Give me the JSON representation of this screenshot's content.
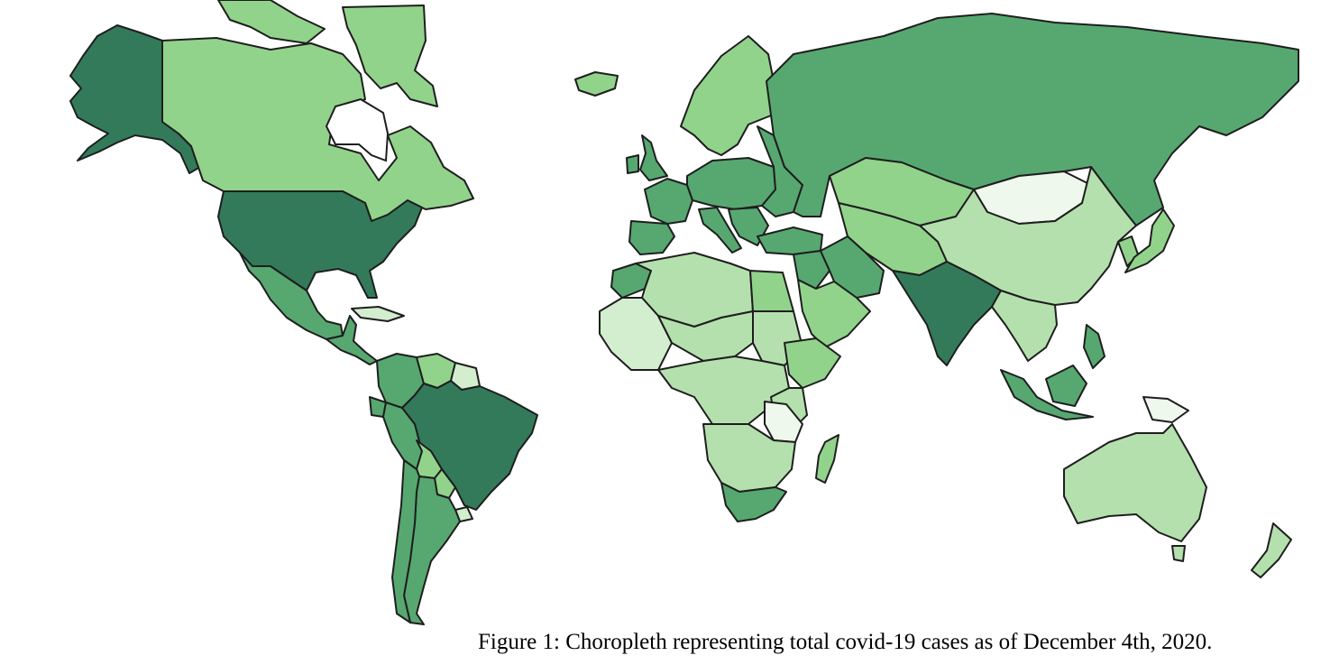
{
  "figure": {
    "caption": "Figure 1: Choropleth representing total covid-19 cases as of December 4th, 2020."
  },
  "palette": {
    "very_low": "#eff8ec",
    "low": "#d3eecf",
    "low_mid": "#b4e0ad",
    "mid": "#92d38c",
    "high": "#56a870",
    "very_high": "#337a5a",
    "border": "#1e1e1e"
  },
  "countries": [
    {
      "name": "alaska",
      "level": "very_high"
    },
    {
      "name": "canada",
      "level": "mid"
    },
    {
      "name": "greenland",
      "level": "mid"
    },
    {
      "name": "united-states",
      "level": "very_high"
    },
    {
      "name": "mexico",
      "level": "high"
    },
    {
      "name": "cuba",
      "level": "low"
    },
    {
      "name": "central-america",
      "level": "high"
    },
    {
      "name": "colombia",
      "level": "high"
    },
    {
      "name": "venezuela",
      "level": "mid"
    },
    {
      "name": "guianas",
      "level": "low"
    },
    {
      "name": "ecuador",
      "level": "high"
    },
    {
      "name": "peru",
      "level": "high"
    },
    {
      "name": "brazil",
      "level": "very_high"
    },
    {
      "name": "bolivia",
      "level": "mid"
    },
    {
      "name": "paraguay",
      "level": "mid"
    },
    {
      "name": "chile",
      "level": "high"
    },
    {
      "name": "argentina",
      "level": "high"
    },
    {
      "name": "uruguay",
      "level": "low"
    },
    {
      "name": "iceland",
      "level": "mid"
    },
    {
      "name": "scandinavia",
      "level": "mid"
    },
    {
      "name": "united-kingdom",
      "level": "high"
    },
    {
      "name": "france",
      "level": "high"
    },
    {
      "name": "iberia",
      "level": "high"
    },
    {
      "name": "central-europe",
      "level": "high"
    },
    {
      "name": "italy",
      "level": "high"
    },
    {
      "name": "eastern-europe",
      "level": "high"
    },
    {
      "name": "russia",
      "level": "high"
    },
    {
      "name": "turkey",
      "level": "high"
    },
    {
      "name": "kazakhstan",
      "level": "mid"
    },
    {
      "name": "mongolia",
      "level": "very_low"
    },
    {
      "name": "china",
      "level": "low_mid"
    },
    {
      "name": "iran",
      "level": "high"
    },
    {
      "name": "arabian-peninsula",
      "level": "mid"
    },
    {
      "name": "central-asia",
      "level": "mid"
    },
    {
      "name": "india",
      "level": "very_high"
    },
    {
      "name": "southeast-asia",
      "level": "low_mid"
    },
    {
      "name": "japan",
      "level": "mid"
    },
    {
      "name": "korea",
      "level": "mid"
    },
    {
      "name": "philippines",
      "level": "high"
    },
    {
      "name": "indonesia",
      "level": "high"
    },
    {
      "name": "papua-new-guinea",
      "level": "very_low"
    },
    {
      "name": "australia",
      "level": "low_mid"
    },
    {
      "name": "new-zealand",
      "level": "low_mid"
    },
    {
      "name": "morocco",
      "level": "high"
    },
    {
      "name": "north-africa",
      "level": "low_mid"
    },
    {
      "name": "egypt",
      "level": "mid"
    },
    {
      "name": "west-africa",
      "level": "low"
    },
    {
      "name": "sahel",
      "level": "low_mid"
    },
    {
      "name": "sudan",
      "level": "low_mid"
    },
    {
      "name": "horn-of-africa",
      "level": "mid"
    },
    {
      "name": "central-africa",
      "level": "low_mid"
    },
    {
      "name": "tanzania",
      "level": "very_low"
    },
    {
      "name": "southern-africa",
      "level": "low_mid"
    },
    {
      "name": "south-africa",
      "level": "high"
    },
    {
      "name": "madagascar",
      "level": "mid"
    }
  ]
}
